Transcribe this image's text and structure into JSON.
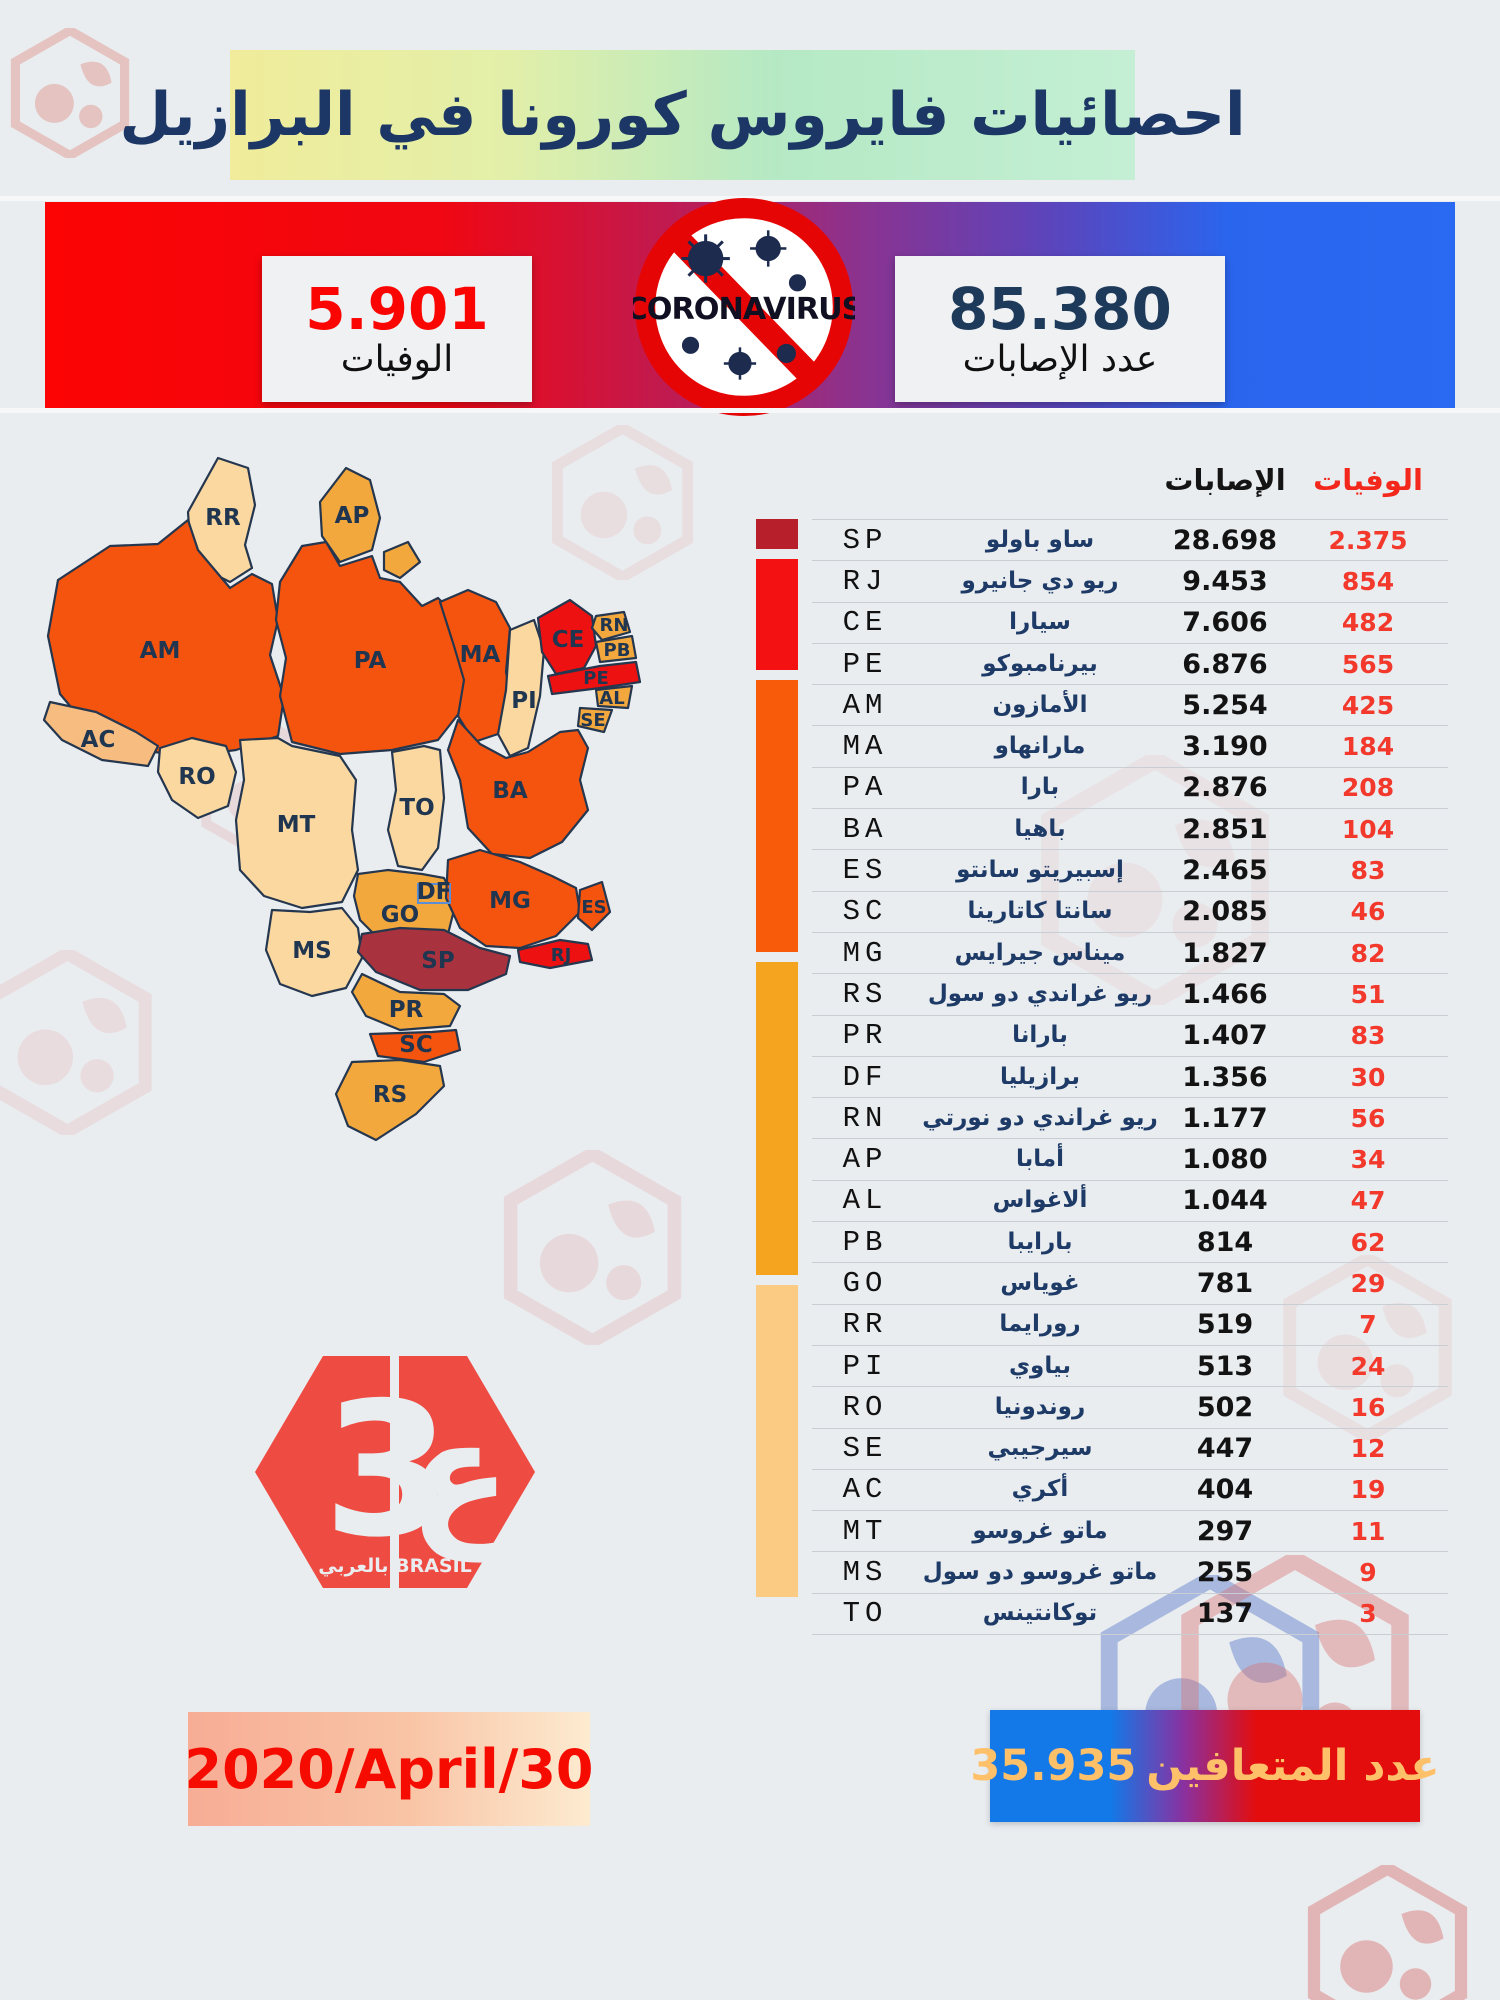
{
  "title": {
    "text": "احصائيات فايروس كورونا في البرازيل"
  },
  "banner": {
    "deaths_value": "5.901",
    "deaths_label": "الوفيات",
    "cases_value": "85.380",
    "cases_label": "عدد الإصابات",
    "logo_text": "CORONAVIRUS"
  },
  "table": {
    "headers": {
      "cases": "الإصابات",
      "deaths": "الوفيات"
    },
    "rows": [
      {
        "code": "SP",
        "name": "ساو باولو",
        "cases": "28.698",
        "deaths": "2.375",
        "group": "g1"
      },
      {
        "code": "RJ",
        "name": "ريو دي جانيرو",
        "cases": "9.453",
        "deaths": "854",
        "group": "g2"
      },
      {
        "code": "CE",
        "name": "سيارا",
        "cases": "7.606",
        "deaths": "482",
        "group": "g2"
      },
      {
        "code": "PE",
        "name": "بيرنامبوكو",
        "cases": "6.876",
        "deaths": "565",
        "group": "g2"
      },
      {
        "code": "AM",
        "name": "الأمازون",
        "cases": "5.254",
        "deaths": "425",
        "group": "g3"
      },
      {
        "code": "MA",
        "name": "مارانهاو",
        "cases": "3.190",
        "deaths": "184",
        "group": "g3"
      },
      {
        "code": "PA",
        "name": "بارا",
        "cases": "2.876",
        "deaths": "208",
        "group": "g3"
      },
      {
        "code": "BA",
        "name": "باهيا",
        "cases": "2.851",
        "deaths": "104",
        "group": "g3"
      },
      {
        "code": "ES",
        "name": "إسبيريتو سانتو",
        "cases": "2.465",
        "deaths": "83",
        "group": "g3"
      },
      {
        "code": "SC",
        "name": "سانتا كاتارينا",
        "cases": "2.085",
        "deaths": "46",
        "group": "g3"
      },
      {
        "code": "MG",
        "name": "ميناس جيرايس",
        "cases": "1.827",
        "deaths": "82",
        "group": "g3"
      },
      {
        "code": "RS",
        "name": "ريو غراندي دو سول",
        "cases": "1.466",
        "deaths": "51",
        "group": "g4"
      },
      {
        "code": "PR",
        "name": "بارانا",
        "cases": "1.407",
        "deaths": "83",
        "group": "g4"
      },
      {
        "code": "DF",
        "name": "برازيليا",
        "cases": "1.356",
        "deaths": "30",
        "group": "g4"
      },
      {
        "code": "RN",
        "name": "ريو غراندي دو نورتي",
        "cases": "1.177",
        "deaths": "56",
        "group": "g4"
      },
      {
        "code": "AP",
        "name": "أمابا",
        "cases": "1.080",
        "deaths": "34",
        "group": "g4"
      },
      {
        "code": "AL",
        "name": "ألاغواس",
        "cases": "1.044",
        "deaths": "47",
        "group": "g4"
      },
      {
        "code": "PB",
        "name": "بارايبا",
        "cases": "814",
        "deaths": "62",
        "group": "g4"
      },
      {
        "code": "GO",
        "name": "غوياس",
        "cases": "781",
        "deaths": "29",
        "group": "g4"
      },
      {
        "code": "RR",
        "name": "رورايما",
        "cases": "519",
        "deaths": "7",
        "group": "g5"
      },
      {
        "code": "PI",
        "name": "بياوي",
        "cases": "513",
        "deaths": "24",
        "group": "g5"
      },
      {
        "code": "RO",
        "name": "روندونيا",
        "cases": "502",
        "deaths": "16",
        "group": "g5"
      },
      {
        "code": "SE",
        "name": "سيرجيبي",
        "cases": "447",
        "deaths": "12",
        "group": "g5"
      },
      {
        "code": "AC",
        "name": "أكري",
        "cases": "404",
        "deaths": "19",
        "group": "g5"
      },
      {
        "code": "MT",
        "name": "ماتو غروسو",
        "cases": "297",
        "deaths": "11",
        "group": "g5"
      },
      {
        "code": "MS",
        "name": "ماتو غروسو دو سول",
        "cases": "255",
        "deaths": "9",
        "group": "g5"
      },
      {
        "code": "TO",
        "name": "توكانتينس",
        "cases": "137",
        "deaths": "3",
        "group": "g5"
      }
    ]
  },
  "map": {
    "df_label": "DF",
    "states": [
      {
        "code": "RR",
        "fill": "cream"
      },
      {
        "code": "AP",
        "fill": "amber"
      },
      {
        "code": "",
        "fill": "amber"
      },
      {
        "code": "AM",
        "fill": "orange"
      },
      {
        "code": "PA",
        "fill": "orange"
      },
      {
        "code": "MA",
        "fill": "orange"
      },
      {
        "code": "PI",
        "fill": "cream"
      },
      {
        "code": "CE",
        "fill": "red"
      },
      {
        "code": "RN",
        "fill": "amber"
      },
      {
        "code": "PB",
        "fill": "amber"
      },
      {
        "code": "PE",
        "fill": "red"
      },
      {
        "code": "AL",
        "fill": "amber"
      },
      {
        "code": "SE",
        "fill": "amber"
      },
      {
        "code": "BA",
        "fill": "orange"
      },
      {
        "code": "AC",
        "fill": "peach"
      },
      {
        "code": "RO",
        "fill": "cream"
      },
      {
        "code": "MT",
        "fill": "cream"
      },
      {
        "code": "TO",
        "fill": "cream"
      },
      {
        "code": "GO",
        "fill": "amber"
      },
      {
        "code": "MS",
        "fill": "cream"
      },
      {
        "code": "MG",
        "fill": "orange"
      },
      {
        "code": "ES",
        "fill": "orange"
      },
      {
        "code": "RJ",
        "fill": "red"
      },
      {
        "code": "SP",
        "fill": "darkred"
      },
      {
        "code": "PR",
        "fill": "amber"
      },
      {
        "code": "SC",
        "fill": "orange"
      },
      {
        "code": "RS",
        "fill": "amber"
      }
    ]
  },
  "footer": {
    "date": "2020/April/30",
    "recovered_label": "عدد المتعافين",
    "recovered_value": "35.935"
  },
  "logo": {
    "glyph_left": "3",
    "glyph_right": "ع",
    "caption": "بالعربي BRASIL"
  },
  "colors": {
    "groups": {
      "g1": "#B7202B",
      "g2": "#F31111",
      "g3": "#F85B09",
      "g4": "#F4A41F",
      "g5": "#FBCB84"
    },
    "map": {
      "cream": "#FAD8A0",
      "amber": "#F3A83E",
      "orange": "#F4540D",
      "red": "#EE1111",
      "darkred": "#A8333E",
      "peach": "#F6BC80"
    },
    "accent_navy": "#1C3765",
    "deaths_red": "#F42A1D",
    "brand_red": "#EE4B42"
  }
}
